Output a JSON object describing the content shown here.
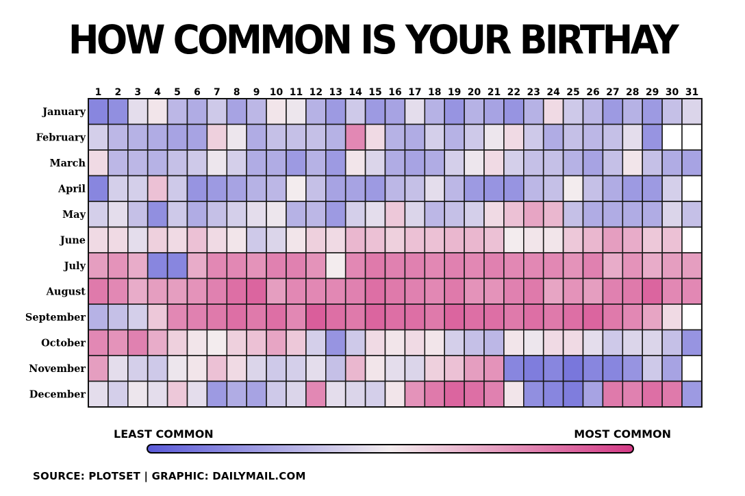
{
  "title": "HOW COMMON IS YOUR BIRTHAY",
  "chart_data": {
    "type": "heatmap",
    "title": "HOW COMMON IS YOUR BIRTHAY",
    "x": [
      "1",
      "2",
      "3",
      "4",
      "5",
      "6",
      "7",
      "8",
      "9",
      "10",
      "11",
      "12",
      "13",
      "14",
      "15",
      "16",
      "17",
      "18",
      "19",
      "20",
      "21",
      "22",
      "23",
      "24",
      "25",
      "26",
      "27",
      "28",
      "29",
      "30",
      "31"
    ],
    "y": [
      "January",
      "February",
      "March",
      "April",
      "May",
      "June",
      "July",
      "August",
      "September",
      "October",
      "November",
      "December"
    ],
    "scale": "0 = least common, 1 = most common",
    "values": [
      [
        0.15,
        0.18,
        0.45,
        0.52,
        0.32,
        0.28,
        0.38,
        0.25,
        0.32,
        0.52,
        0.48,
        0.3,
        0.22,
        0.38,
        0.22,
        0.25,
        0.45,
        0.3,
        0.2,
        0.3,
        0.25,
        0.2,
        0.3,
        0.55,
        0.38,
        0.32,
        0.22,
        0.3,
        0.22,
        0.35,
        0.42
      ],
      [
        0.4,
        0.32,
        0.3,
        0.28,
        0.25,
        0.25,
        0.58,
        0.48,
        0.28,
        0.35,
        0.35,
        0.35,
        0.3,
        0.78,
        0.55,
        0.3,
        0.28,
        0.4,
        0.3,
        0.38,
        0.48,
        0.55,
        0.38,
        0.28,
        0.35,
        0.32,
        0.35,
        0.45,
        0.2,
        null,
        null
      ],
      [
        0.55,
        0.32,
        0.32,
        0.3,
        0.35,
        0.38,
        0.48,
        0.4,
        0.28,
        0.28,
        0.22,
        0.3,
        0.22,
        0.52,
        0.42,
        0.28,
        0.25,
        0.28,
        0.4,
        0.48,
        0.55,
        0.4,
        0.35,
        0.35,
        0.3,
        0.25,
        0.35,
        0.52,
        0.35,
        0.28,
        0.25
      ],
      [
        0.15,
        0.4,
        0.4,
        0.62,
        0.38,
        0.2,
        0.22,
        0.25,
        0.3,
        0.32,
        0.5,
        0.35,
        0.25,
        0.25,
        0.22,
        0.32,
        0.35,
        0.45,
        0.32,
        0.22,
        0.2,
        0.2,
        0.32,
        0.35,
        0.5,
        0.35,
        0.28,
        0.22,
        0.22,
        0.4,
        null
      ],
      [
        0.4,
        0.45,
        0.35,
        0.18,
        0.38,
        0.28,
        0.35,
        0.4,
        0.45,
        0.48,
        0.3,
        0.32,
        0.22,
        0.4,
        0.45,
        0.6,
        0.42,
        0.32,
        0.35,
        0.4,
        0.55,
        0.62,
        0.7,
        0.65,
        0.35,
        0.28,
        0.28,
        0.28,
        0.28,
        0.42,
        0.35
      ],
      [
        0.55,
        0.55,
        0.45,
        0.58,
        0.55,
        0.62,
        0.55,
        0.52,
        0.38,
        0.42,
        0.52,
        0.58,
        0.55,
        0.65,
        0.62,
        0.58,
        0.62,
        0.62,
        0.65,
        0.65,
        0.62,
        0.5,
        0.52,
        0.52,
        0.6,
        0.65,
        0.72,
        0.68,
        0.6,
        0.62,
        null
      ],
      [
        0.72,
        0.75,
        0.68,
        0.15,
        0.15,
        0.68,
        0.78,
        0.78,
        0.75,
        0.8,
        0.8,
        0.75,
        0.5,
        0.78,
        0.82,
        0.8,
        0.8,
        0.78,
        0.8,
        0.78,
        0.8,
        0.78,
        0.78,
        0.78,
        0.75,
        0.8,
        0.68,
        0.75,
        0.68,
        0.72,
        0.72
      ],
      [
        0.82,
        0.78,
        0.68,
        0.72,
        0.72,
        0.75,
        0.8,
        0.85,
        0.88,
        0.72,
        0.78,
        0.78,
        0.78,
        0.8,
        0.85,
        0.82,
        0.8,
        0.78,
        0.82,
        0.75,
        0.75,
        0.8,
        0.82,
        0.7,
        0.75,
        0.72,
        0.8,
        0.82,
        0.88,
        0.78,
        0.78
      ],
      [
        0.3,
        0.35,
        0.4,
        0.6,
        0.78,
        0.8,
        0.82,
        0.85,
        0.82,
        0.85,
        0.78,
        0.9,
        0.85,
        0.82,
        0.88,
        0.85,
        0.85,
        0.82,
        0.88,
        0.85,
        0.85,
        0.82,
        0.85,
        0.82,
        0.85,
        0.88,
        0.82,
        0.78,
        0.7,
        0.55,
        null
      ],
      [
        0.78,
        0.75,
        0.8,
        0.68,
        0.58,
        0.52,
        0.5,
        0.58,
        0.62,
        0.7,
        0.6,
        0.4,
        0.2,
        0.38,
        0.55,
        0.52,
        0.55,
        0.52,
        0.4,
        0.35,
        0.32,
        0.52,
        0.48,
        0.55,
        0.55,
        0.45,
        0.38,
        0.42,
        0.42,
        0.35,
        0.2
      ],
      [
        0.72,
        0.45,
        0.4,
        0.38,
        0.48,
        0.52,
        0.62,
        0.55,
        0.42,
        0.38,
        0.4,
        0.45,
        0.35,
        0.65,
        0.52,
        0.45,
        0.42,
        0.58,
        0.62,
        0.72,
        0.75,
        0.15,
        0.12,
        0.15,
        0.1,
        0.15,
        0.15,
        0.2,
        0.38,
        0.25,
        null
      ],
      [
        0.45,
        0.4,
        0.48,
        0.45,
        0.6,
        0.45,
        0.22,
        0.28,
        0.25,
        0.38,
        0.42,
        0.78,
        0.45,
        0.42,
        0.4,
        0.52,
        0.75,
        0.82,
        0.88,
        0.85,
        0.8,
        0.52,
        0.18,
        0.15,
        0.12,
        0.25,
        0.82,
        0.8,
        0.85,
        0.82,
        0.22
      ]
    ],
    "colorscale": [
      "#5a5ad8",
      "#f3ecee",
      "#d43a86"
    ],
    "empty_color": "#ffffff",
    "legend_low": "LEAST COMMON",
    "legend_high": "MOST COMMON"
  },
  "legend": {
    "least": "LEAST COMMON",
    "most": "MOST COMMON"
  },
  "source": "SOURCE: PLOTSET | GRAPHIC: DAILYMAIL.COM"
}
